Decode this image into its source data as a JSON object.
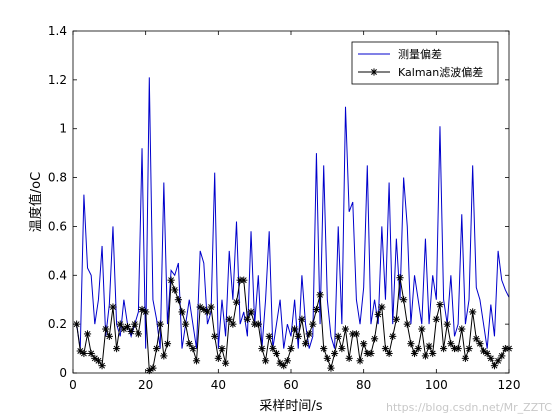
{
  "chart_data": {
    "type": "line",
    "title": "",
    "xlabel": "采样时间/s",
    "ylabel": "温度值/oC",
    "xlim": [
      0,
      120
    ],
    "ylim": [
      0,
      1.4
    ],
    "xticks": [
      0,
      20,
      40,
      60,
      80,
      100,
      120
    ],
    "yticks": [
      0,
      0.2,
      0.4,
      0.6,
      0.8,
      1,
      1.2,
      1.4
    ],
    "grid": false,
    "legend_position": "top-right",
    "series": [
      {
        "name": "测量偏差",
        "color": "#0000cc",
        "marker": "none",
        "x": [
          1,
          2,
          3,
          4,
          5,
          6,
          7,
          8,
          9,
          10,
          11,
          12,
          13,
          14,
          15,
          16,
          17,
          18,
          19,
          20,
          21,
          22,
          23,
          24,
          25,
          26,
          27,
          28,
          29,
          30,
          31,
          32,
          33,
          34,
          35,
          36,
          37,
          38,
          39,
          40,
          41,
          42,
          43,
          44,
          45,
          46,
          47,
          48,
          49,
          50,
          51,
          52,
          53,
          54,
          55,
          56,
          57,
          58,
          59,
          60,
          61,
          62,
          63,
          64,
          65,
          66,
          67,
          68,
          69,
          70,
          71,
          72,
          73,
          74,
          75,
          76,
          77,
          78,
          79,
          80,
          81,
          82,
          83,
          84,
          85,
          86,
          87,
          88,
          89,
          90,
          91,
          92,
          93,
          94,
          95,
          96,
          97,
          98,
          99,
          100,
          101,
          102,
          103,
          104,
          105,
          106,
          107,
          108,
          109,
          110,
          111,
          112,
          113,
          114,
          115,
          116,
          117,
          118,
          119,
          120
        ],
        "y": [
          0.2,
          0.1,
          0.73,
          0.43,
          0.4,
          0.2,
          0.3,
          0.52,
          0.15,
          0.28,
          0.6,
          0.2,
          0.15,
          0.3,
          0.2,
          0.15,
          0.2,
          0.25,
          0.92,
          0.1,
          1.21,
          0.3,
          0.22,
          0.1,
          0.78,
          0.2,
          0.42,
          0.4,
          0.45,
          0.1,
          0.2,
          0.3,
          0.2,
          0.1,
          0.5,
          0.45,
          0.2,
          0.25,
          0.82,
          0.1,
          0.3,
          0.15,
          0.5,
          0.3,
          0.62,
          0.2,
          0.25,
          0.15,
          0.58,
          0.2,
          0.4,
          0.1,
          0.3,
          0.58,
          0.1,
          0.2,
          0.3,
          0.1,
          0.2,
          0.15,
          0.3,
          0.1,
          0.4,
          0.2,
          0.1,
          0.15,
          0.9,
          0.2,
          0.85,
          0.3,
          0.15,
          0.1,
          0.6,
          0.2,
          1.09,
          0.66,
          0.7,
          0.3,
          0.2,
          0.35,
          0.85,
          0.2,
          0.3,
          0.2,
          0.6,
          0.3,
          0.78,
          0.2,
          0.55,
          0.3,
          0.8,
          0.6,
          0.2,
          0.4,
          0.3,
          0.2,
          0.55,
          0.2,
          0.4,
          0.3,
          1.01,
          0.3,
          0.2,
          0.4,
          0.15,
          0.2,
          0.65,
          0.2,
          0.3,
          0.85,
          0.35,
          0.3,
          0.2,
          0.1,
          0.28,
          0.15,
          0.5,
          0.38,
          0.34,
          0.31
        ]
      },
      {
        "name": "Kalman滤波偏差",
        "color": "#000000",
        "marker": "asterisk",
        "x": [
          1,
          2,
          3,
          4,
          5,
          6,
          7,
          8,
          9,
          10,
          11,
          12,
          13,
          14,
          15,
          16,
          17,
          18,
          19,
          20,
          21,
          22,
          23,
          24,
          25,
          26,
          27,
          28,
          29,
          30,
          31,
          32,
          33,
          34,
          35,
          36,
          37,
          38,
          39,
          40,
          41,
          42,
          43,
          44,
          45,
          46,
          47,
          48,
          49,
          50,
          51,
          52,
          53,
          54,
          55,
          56,
          57,
          58,
          59,
          60,
          61,
          62,
          63,
          64,
          65,
          66,
          67,
          68,
          69,
          70,
          71,
          72,
          73,
          74,
          75,
          76,
          77,
          78,
          79,
          80,
          81,
          82,
          83,
          84,
          85,
          86,
          87,
          88,
          89,
          90,
          91,
          92,
          93,
          94,
          95,
          96,
          97,
          98,
          99,
          100,
          101,
          102,
          103,
          104,
          105,
          106,
          107,
          108,
          109,
          110,
          111,
          112,
          113,
          114,
          115,
          116,
          117,
          118,
          119,
          120
        ],
        "y": [
          0.2,
          0.09,
          0.08,
          0.16,
          0.08,
          0.06,
          0.05,
          0.03,
          0.18,
          0.15,
          0.27,
          0.1,
          0.2,
          0.18,
          0.19,
          0.17,
          0.2,
          0.16,
          0.26,
          0.25,
          0.01,
          0.02,
          0.1,
          0.2,
          0.07,
          0.12,
          0.38,
          0.34,
          0.3,
          0.25,
          0.2,
          0.12,
          0.1,
          0.05,
          0.27,
          0.26,
          0.25,
          0.27,
          0.15,
          0.06,
          0.1,
          0.04,
          0.22,
          0.2,
          0.29,
          0.38,
          0.38,
          0.22,
          0.25,
          0.2,
          0.2,
          0.1,
          0.05,
          0.15,
          0.1,
          0.08,
          0.04,
          0.03,
          0.05,
          0.1,
          0.18,
          0.15,
          0.22,
          0.12,
          0.16,
          0.2,
          0.26,
          0.32,
          0.1,
          0.06,
          0.02,
          0.08,
          0.15,
          0.1,
          0.18,
          0.06,
          0.16,
          0.16,
          0.05,
          0.12,
          0.08,
          0.08,
          0.14,
          0.24,
          0.27,
          0.1,
          0.08,
          0.15,
          0.22,
          0.39,
          0.3,
          0.2,
          0.12,
          0.08,
          0.1,
          0.18,
          0.07,
          0.11,
          0.08,
          0.22,
          0.28,
          0.1,
          0.2,
          0.12,
          0.1,
          0.1,
          0.18,
          0.06,
          0.1,
          0.25,
          0.14,
          0.12,
          0.09,
          0.08,
          0.06,
          0.03,
          0.05,
          0.07,
          0.1,
          0.1
        ]
      }
    ]
  },
  "watermark": "https://blog.csdn.net/Mr_ZZTC"
}
